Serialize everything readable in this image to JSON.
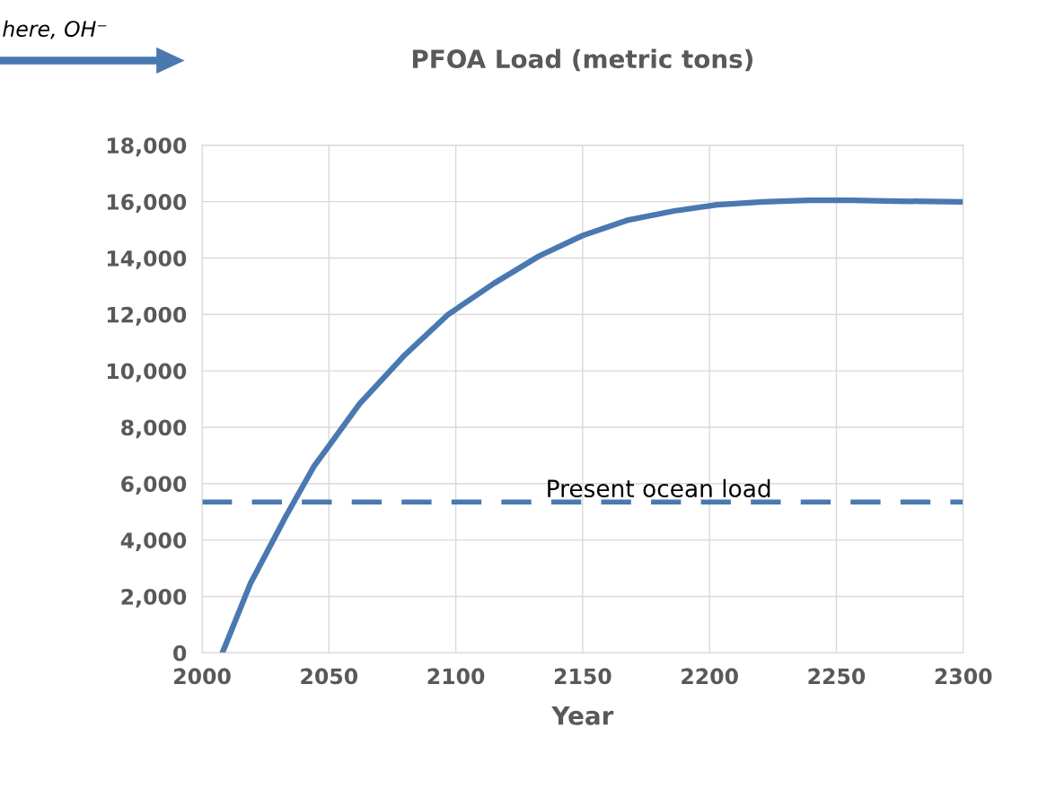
{
  "chart_data": {
    "type": "line",
    "title": "PFOA Load (metric tons)",
    "xlabel": "Year",
    "x": [
      2008,
      2019,
      2033,
      2044,
      2062,
      2080,
      2097,
      2115,
      2133,
      2150,
      2168,
      2186,
      2203,
      2221,
      2239,
      2256,
      2274,
      2300
    ],
    "series": [
      {
        "color": "#4a78b0",
        "values": [
          0,
          2450,
          4840,
          6600,
          8820,
          10570,
          12000,
          13100,
          14080,
          14800,
          15350,
          15670,
          15890,
          15990,
          16050,
          16050,
          16020,
          15990
        ]
      }
    ],
    "xlim": [
      2000,
      2300
    ],
    "xticks": [
      2000,
      2050,
      2100,
      2150,
      2200,
      2250,
      2300
    ],
    "ylim": [
      0,
      18000
    ],
    "yticks": [
      {
        "value": 0,
        "label": "0"
      },
      {
        "value": 2000,
        "label": "2,000"
      },
      {
        "value": 4000,
        "label": "4,000"
      },
      {
        "value": 6000,
        "label": "6,000"
      },
      {
        "value": 8000,
        "label": "8,000"
      },
      {
        "value": 10000,
        "label": "10,000"
      },
      {
        "value": 12000,
        "label": "12,000"
      },
      {
        "value": 14000,
        "label": "14,000"
      },
      {
        "value": 16000,
        "label": "16,000"
      },
      {
        "value": 18000,
        "label": "18,000"
      }
    ],
    "ref_lines": [
      {
        "axis": "y",
        "value": 5350,
        "label": "Present ocean load",
        "color": "#4a78b0",
        "line_style": "dashed"
      }
    ],
    "annotations": [
      "here, OH⁻"
    ],
    "grid": true,
    "legend": false,
    "marker": "none",
    "line_style": "solid"
  }
}
